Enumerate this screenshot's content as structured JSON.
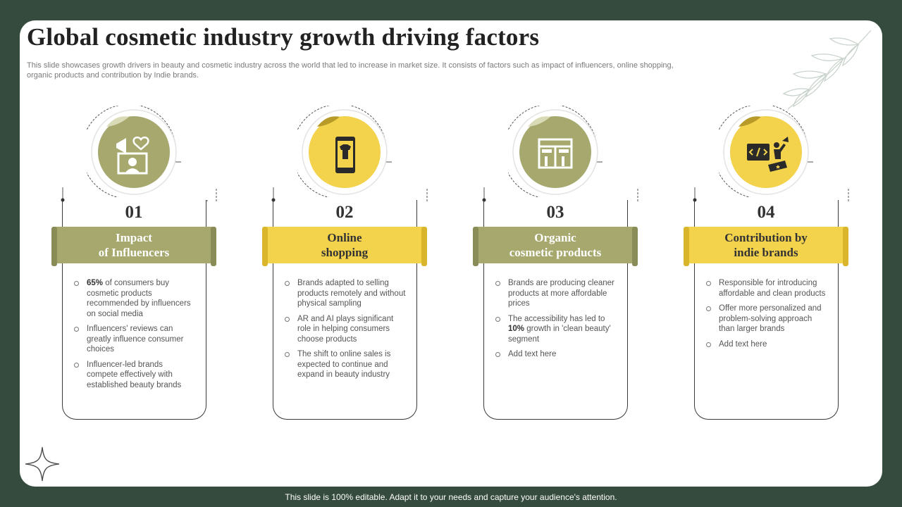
{
  "slide": {
    "title": "Global cosmetic industry growth driving factors",
    "subtitle": "This slide showcases growth drivers in beauty and cosmetic industry across the world that led to increase in market size. It consists of factors such as impact of influencers, online shopping, organic products and contribution by Indie brands."
  },
  "colors": {
    "olive": "#a6a86e",
    "yellow": "#f3d24c",
    "background": "#354b3e"
  },
  "cards": [
    {
      "number": "01",
      "title": "Impact\nof Influencers",
      "icon": "megaphone-heart-icon",
      "bullets": [
        {
          "bold": "65%",
          "text": " of consumers buy cosmetic products recommended by influencers on social media"
        },
        {
          "bold": "",
          "text": "Influencers' reviews can greatly influence consumer choices"
        },
        {
          "bold": "",
          "text": "Influencer-led brands compete effectively with established beauty brands"
        }
      ]
    },
    {
      "number": "02",
      "title": "Online\nshopping",
      "icon": "mobile-shirt-icon",
      "bullets": [
        {
          "bold": "",
          "text": "Brands adapted to selling products remotely and without physical sampling"
        },
        {
          "bold": "",
          "text": "AR and AI plays significant role in helping consumers choose products"
        },
        {
          "bold": "",
          "text": "The shift to online sales is expected to continue and expand in beauty industry"
        }
      ]
    },
    {
      "number": "03",
      "title": "Organic\ncosmetic products",
      "icon": "store-shelf-icon",
      "bullets": [
        {
          "bold": "",
          "text": "Brands are producing cleaner products at more affordable prices"
        },
        {
          "bold": "",
          "text": "The accessibility has led to ",
          "bold2": "10%",
          "text2": " growth in 'clean beauty' segment"
        },
        {
          "bold": "",
          "text": "Add text here"
        }
      ]
    },
    {
      "number": "04",
      "title": "Contribution by\nindie brands",
      "icon": "code-brand-icon",
      "bullets": [
        {
          "bold": "",
          "text": "Responsible for introducing affordable and clean products"
        },
        {
          "bold": "",
          "text": "Offer more personalized and problem-solving approach than larger brands"
        },
        {
          "bold": "",
          "text": "Add text here"
        }
      ]
    }
  ],
  "footer": "This slide is 100% editable. Adapt it to your needs and capture your audience's attention."
}
